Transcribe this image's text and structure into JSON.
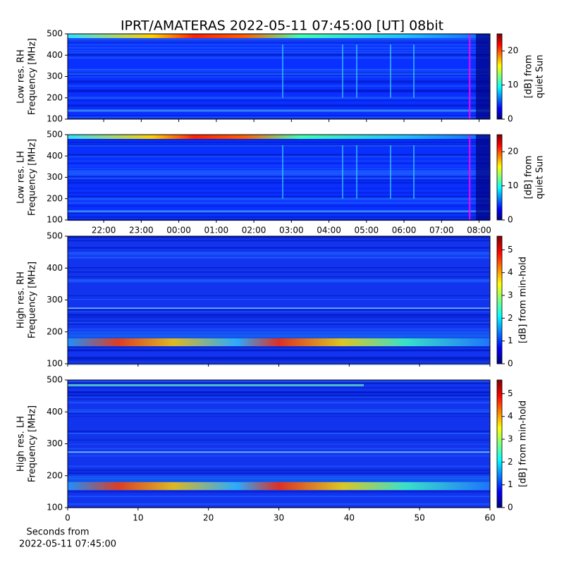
{
  "chart_data": [
    {
      "type": "heatmap",
      "title": "IPRT/AMATERAS 2022-05-11 07:45:00 [UT]   08bit",
      "ylabel": [
        "Low res. RH",
        "Frequency [MHz]"
      ],
      "ylim": [
        100,
        500
      ],
      "yticks": [
        100,
        200,
        300,
        400,
        500
      ],
      "xlim": [
        21.04,
        32.29
      ],
      "xticks": [
        22,
        23,
        24,
        25,
        26,
        27,
        28,
        29,
        30,
        31,
        32
      ],
      "marker": {
        "x": 31.75,
        "color": "#ff00ff"
      },
      "colorbar": {
        "label": [
          "[dB] from",
          "quiet Sun"
        ],
        "lim": [
          0,
          25
        ],
        "ticks": [
          0,
          10,
          20
        ],
        "colors": [
          "#00007f",
          "#0000ff",
          "#007fff",
          "#00ffff",
          "#7fff7f",
          "#ffff00",
          "#ff7f00",
          "#ff0000",
          "#7f0000"
        ]
      }
    },
    {
      "type": "heatmap",
      "ylabel": [
        "Low res. LH",
        "Frequency [MHz]"
      ],
      "ylim": [
        100,
        500
      ],
      "yticks": [
        100,
        200,
        300,
        400,
        500
      ],
      "xlim": [
        21.04,
        32.29
      ],
      "xticks": [
        {
          "value": 22,
          "label": "22:00"
        },
        {
          "value": 23,
          "label": "23:00"
        },
        {
          "value": 24,
          "label": "00:00"
        },
        {
          "value": 25,
          "label": "01:00"
        },
        {
          "value": 26,
          "label": "02:00"
        },
        {
          "value": 27,
          "label": "03:00"
        },
        {
          "value": 28,
          "label": "04:00"
        },
        {
          "value": 29,
          "label": "05:00"
        },
        {
          "value": 30,
          "label": "06:00"
        },
        {
          "value": 31,
          "label": "07:00"
        },
        {
          "value": 32,
          "label": "08:00"
        }
      ],
      "marker": {
        "x": 31.75,
        "color": "#ff00ff"
      },
      "colorbar": {
        "label": [
          "[dB] from",
          "quiet Sun"
        ],
        "lim": [
          0,
          25
        ],
        "ticks": [
          0,
          10,
          20
        ],
        "colors": [
          "#00007f",
          "#0000ff",
          "#007fff",
          "#00ffff",
          "#7fff7f",
          "#ffff00",
          "#ff7f00",
          "#ff0000",
          "#7f0000"
        ]
      }
    },
    {
      "type": "heatmap",
      "ylabel": [
        "High res. RH",
        "Frequency [MHz]"
      ],
      "ylim": [
        100,
        500
      ],
      "yticks": [
        100,
        200,
        300,
        400,
        500
      ],
      "xlim": [
        0,
        60
      ],
      "xticks": [
        0,
        10,
        20,
        30,
        40,
        50,
        60
      ],
      "colorbar": {
        "label": [
          "[dB] from min-hold"
        ],
        "lim": [
          0,
          5.6
        ],
        "ticks": [
          0,
          1,
          2,
          3,
          4,
          5
        ],
        "colors": [
          "#00007f",
          "#0000ff",
          "#007fff",
          "#00ffff",
          "#7fff7f",
          "#ffff00",
          "#ff7f00",
          "#ff0000",
          "#7f0000"
        ]
      }
    },
    {
      "type": "heatmap",
      "ylabel": [
        "High res. LH",
        "Frequency [MHz]"
      ],
      "ylim": [
        100,
        500
      ],
      "yticks": [
        100,
        200,
        300,
        400,
        500
      ],
      "xlim": [
        0,
        60
      ],
      "xticks": [
        0,
        10,
        20,
        30,
        40,
        50,
        60
      ],
      "xlabel": [
        "Seconds from",
        "2022-05-11 07:45:00"
      ],
      "colorbar": {
        "label": [
          "[dB] from min-hold"
        ],
        "lim": [
          0,
          5.6
        ],
        "ticks": [
          0,
          1,
          2,
          3,
          4,
          5
        ],
        "colors": [
          "#00007f",
          "#0000ff",
          "#007fff",
          "#00ffff",
          "#7fff7f",
          "#ffff00",
          "#ff7f00",
          "#ff0000",
          "#7f0000"
        ]
      }
    }
  ]
}
